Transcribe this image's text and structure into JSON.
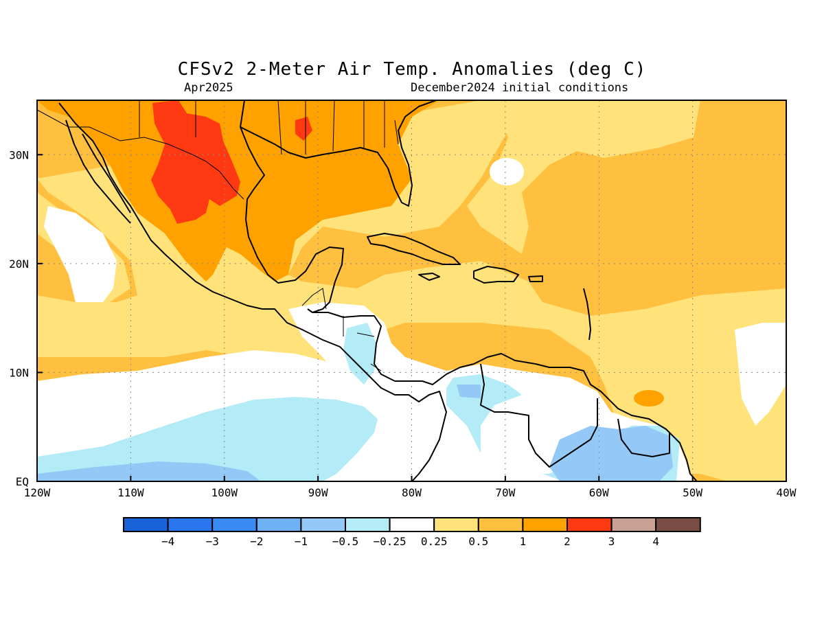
{
  "title": "CFSv2 2-Meter Air Temp. Anomalies (deg C)",
  "subtitle_left": "Apr2025",
  "subtitle_right": "December2024 initial conditions",
  "map": {
    "lon_range": [
      -120,
      -40
    ],
    "lat_range": [
      0,
      35
    ],
    "lon_ticks": [
      "120W",
      "110W",
      "100W",
      "90W",
      "80W",
      "70W",
      "60W",
      "50W",
      "40W"
    ],
    "lat_ticks": [
      "EQ",
      "10N",
      "20N",
      "30N"
    ],
    "grid": "dotted"
  },
  "colorbar": {
    "colors": [
      "#1961d6",
      "#2a74ed",
      "#3a8cf2",
      "#6fb1f5",
      "#94c9f7",
      "#b3ecf7",
      "#ffffff",
      "#ffe37a",
      "#ffbf3f",
      "#ffa200",
      "#ff3a12",
      "#c9a094",
      "#7a4d45"
    ],
    "labels": [
      "−4",
      "−3",
      "−2",
      "−1",
      "−0.5",
      "−0.25",
      "0.25",
      "0.5",
      "1",
      "2",
      "3",
      "4"
    ]
  },
  "colors": {
    "ocean_light_blue": "#b3ecf7",
    "blue": "#94c9f7",
    "yellow": "#ffe37a",
    "light_orange": "#ffbf3f",
    "orange": "#ffa200",
    "red": "#ff3a12"
  }
}
